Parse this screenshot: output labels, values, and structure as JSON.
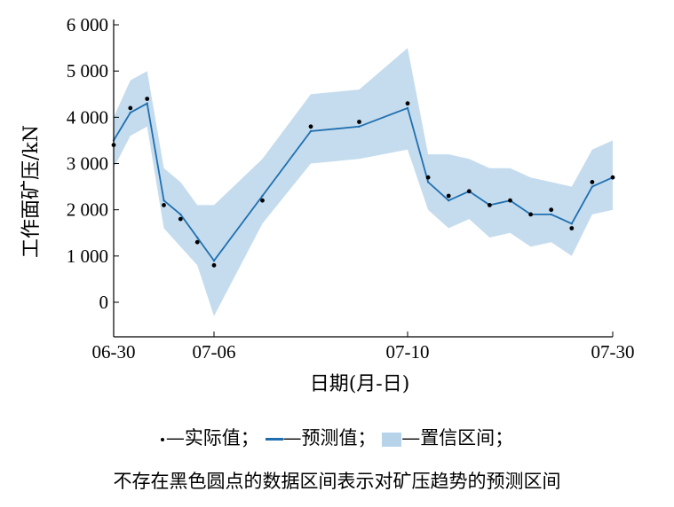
{
  "chart_data": {
    "type": "line",
    "xlabel": "日期(月-日)",
    "ylabel": "工作面矿压/kN",
    "x_ticks": [
      "06-30",
      "07-06",
      "07-10",
      "07-30"
    ],
    "y_ticks": [
      "0",
      "1 000",
      "2 000",
      "3 000",
      "4 000",
      "5 000",
      "6 000"
    ],
    "ylim": [
      -700,
      6000
    ],
    "grid": false,
    "legend": {
      "actual": "—实际值；",
      "predicted": "—预测值；",
      "interval": "—置信区间；"
    },
    "series": [
      {
        "name": "实际值",
        "style": "dots",
        "x": [
          "06-30",
          "07-01",
          "07-02",
          "07-03",
          "07-04",
          "07-05",
          "07-06",
          "07-07",
          "07-08",
          "07-09",
          "07-10",
          "07-12",
          "07-14",
          "07-16",
          "07-18",
          "07-20",
          "07-22",
          "07-24",
          "07-26",
          "07-28",
          "07-30"
        ],
        "values": [
          3400,
          4200,
          4400,
          2100,
          1800,
          1300,
          800,
          2200,
          3800,
          3900,
          4300,
          2700,
          2300,
          2400,
          2100,
          2200,
          1900,
          2000,
          1600,
          2600,
          2700
        ]
      },
      {
        "name": "预测值",
        "style": "line",
        "x": [
          "06-30",
          "07-01",
          "07-02",
          "07-03",
          "07-04",
          "07-05",
          "07-06",
          "07-07",
          "07-08",
          "07-09",
          "07-10",
          "07-12",
          "07-14",
          "07-16",
          "07-18",
          "07-20",
          "07-22",
          "07-24",
          "07-26",
          "07-28",
          "07-30"
        ],
        "values": [
          3500,
          4100,
          4300,
          2200,
          1900,
          1400,
          900,
          2300,
          3700,
          3800,
          4200,
          2600,
          2200,
          2400,
          2100,
          2200,
          1900,
          1900,
          1700,
          2500,
          2700
        ]
      }
    ],
    "confidence_band": {
      "name": "置信区间",
      "x": [
        "06-30",
        "07-01",
        "07-02",
        "07-03",
        "07-04",
        "07-05",
        "07-06",
        "07-07",
        "07-08",
        "07-09",
        "07-10",
        "07-12",
        "07-14",
        "07-16",
        "07-18",
        "07-20",
        "07-22",
        "07-24",
        "07-26",
        "07-28",
        "07-30"
      ],
      "lower": [
        2900,
        3600,
        3800,
        1600,
        1200,
        800,
        -300,
        1700,
        3000,
        3100,
        3300,
        2000,
        1600,
        1800,
        1400,
        1500,
        1200,
        1300,
        1000,
        1900,
        2000
      ],
      "upper": [
        4000,
        4800,
        5000,
        2900,
        2600,
        2100,
        2100,
        3100,
        4500,
        4600,
        5500,
        3200,
        3200,
        3100,
        2900,
        2900,
        2700,
        2600,
        2500,
        3300,
        3500
      ]
    },
    "note": "不存在黑色圆点的数据区间表示对矿压趋势的预测区间"
  }
}
